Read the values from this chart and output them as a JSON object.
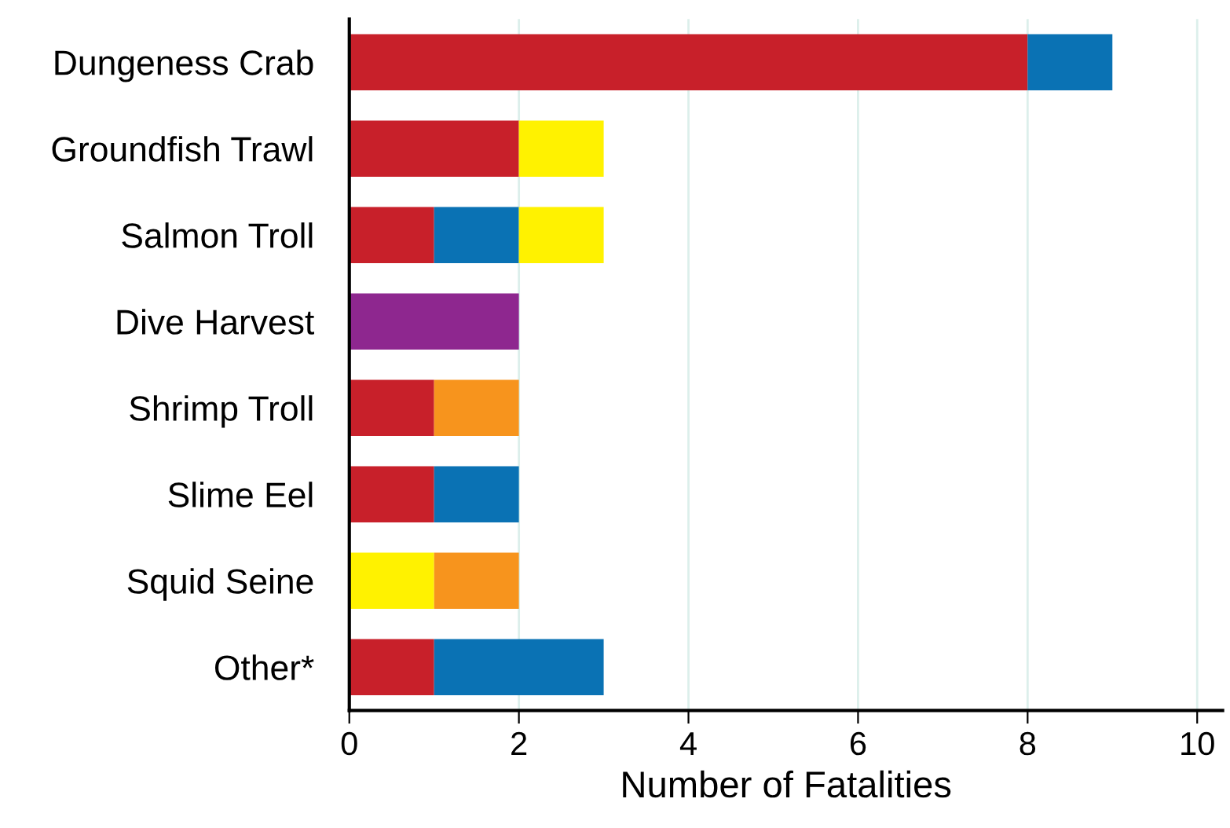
{
  "chart_data": {
    "type": "bar",
    "orientation": "horizontal",
    "stacked": true,
    "categories": [
      "Dungeness Crab",
      "Groundfish Trawl",
      "Salmon Troll",
      "Dive Harvest",
      "Shrimp Troll",
      "Slime Eel",
      "Squid Seine",
      "Other*"
    ],
    "series": [
      {
        "color": "#c8202a",
        "values": [
          8,
          2,
          1,
          null,
          1,
          1,
          null,
          1
        ]
      },
      {
        "color": "#8e278f",
        "values": [
          null,
          null,
          null,
          2,
          null,
          null,
          null,
          null
        ]
      },
      {
        "color": "#0a72b4",
        "values": [
          1,
          null,
          1,
          null,
          null,
          1,
          null,
          2
        ]
      },
      {
        "color": "#fff200",
        "values": [
          null,
          1,
          1,
          null,
          null,
          null,
          1,
          null
        ]
      },
      {
        "color": "#f7941d",
        "values": [
          null,
          null,
          null,
          null,
          1,
          null,
          1,
          null
        ]
      }
    ],
    "xlabel": "Number of Fatalities",
    "xlim": [
      0,
      10.3
    ],
    "xticks": [
      0,
      2,
      4,
      6,
      8,
      10
    ],
    "grid": "x",
    "legend": false
  }
}
